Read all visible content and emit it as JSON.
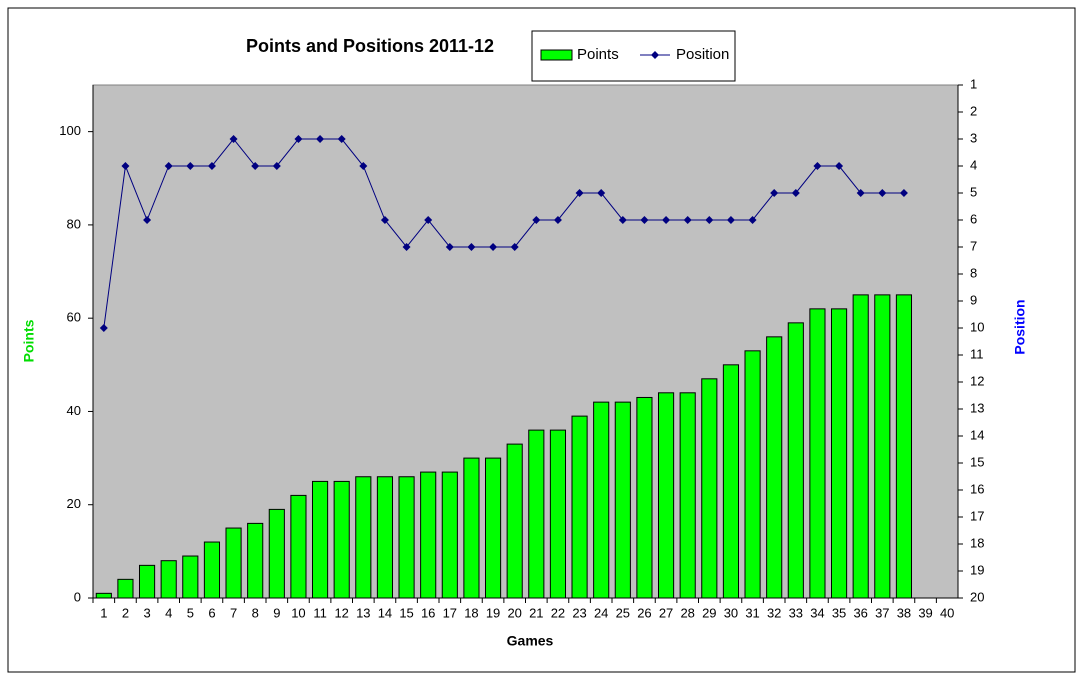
{
  "chart_data": {
    "type": "bar",
    "title": "Points and Positions 2011-12",
    "x_label": "Games",
    "y_label": "Points",
    "y2_label": "Position",
    "categories": [
      "1",
      "2",
      "3",
      "4",
      "5",
      "6",
      "7",
      "8",
      "9",
      "10",
      "11",
      "12",
      "13",
      "14",
      "15",
      "16",
      "17",
      "18",
      "19",
      "20",
      "21",
      "22",
      "23",
      "24",
      "25",
      "26",
      "27",
      "28",
      "29",
      "30",
      "31",
      "32",
      "33",
      "34",
      "35",
      "36",
      "37",
      "38",
      "39",
      "40"
    ],
    "series": [
      {
        "name": "Points",
        "type": "bar",
        "color": "#00ff00",
        "values": [
          1,
          4,
          7,
          8,
          9,
          12,
          15,
          16,
          19,
          22,
          25,
          25,
          26,
          26,
          26,
          27,
          27,
          30,
          30,
          33,
          36,
          36,
          39,
          42,
          42,
          43,
          44,
          44,
          47,
          50,
          53,
          56,
          59,
          62,
          62,
          65,
          65,
          65,
          null,
          null
        ]
      },
      {
        "name": "Position",
        "type": "line",
        "axis": "y2",
        "color": "#000080",
        "values": [
          10,
          4,
          6,
          4,
          4,
          4,
          3,
          4,
          4,
          3,
          3,
          3,
          4,
          6,
          7,
          6,
          7,
          7,
          7,
          7,
          6,
          6,
          5,
          5,
          6,
          6,
          6,
          6,
          6,
          6,
          6,
          5,
          5,
          4,
          4,
          5,
          5,
          5,
          null,
          null
        ]
      }
    ],
    "ylim": [
      0,
      110
    ],
    "yticks": [
      0,
      20,
      40,
      60,
      80,
      100
    ],
    "y2lim": [
      20,
      1
    ],
    "y2ticks": [
      1,
      2,
      3,
      4,
      5,
      6,
      7,
      8,
      9,
      10,
      11,
      12,
      13,
      14,
      15,
      16,
      17,
      18,
      19,
      20
    ],
    "grid": false
  }
}
